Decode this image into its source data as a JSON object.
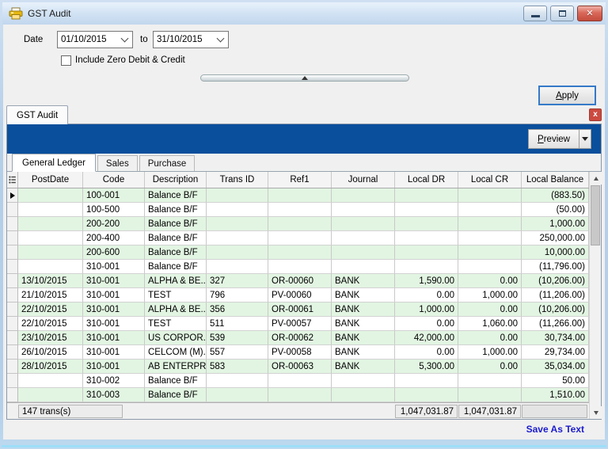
{
  "window": {
    "title": "GST Audit"
  },
  "icons": {
    "window": "printer",
    "close": "✕",
    "tab_close": "x",
    "current_row": "▶",
    "dropdown": "▼",
    "scroll_up": "▲",
    "scroll_down": "▼",
    "splitter_grip": "▲"
  },
  "colors": {
    "toolbar_blue": "#0a4f9c",
    "row_green": "#e2f5e2",
    "link_blue": "#1a1acd",
    "close_red": "#c34b3c",
    "titlebar_blue": "#cfe1f3"
  },
  "form": {
    "date_label": "Date",
    "date_from": "01/10/2015",
    "to_label": "to",
    "date_to": "31/10/2015",
    "checkbox_label": "Include Zero Debit & Credit",
    "checkbox_checked": false,
    "apply_label": "Apply"
  },
  "document_tab": {
    "label": "GST Audit"
  },
  "toolbar": {
    "preview_label": "Preview"
  },
  "tabs": {
    "general_ledger": "General Ledger",
    "sales": "Sales",
    "purchase": "Purchase",
    "active": "General Ledger"
  },
  "grid": {
    "columns": [
      "PostDate",
      "Code",
      "Description",
      "Trans ID",
      "Ref1",
      "Journal",
      "Local DR",
      "Local CR",
      "Local Balance"
    ],
    "rows": [
      {
        "current": true,
        "post_date": "",
        "code": "100-001",
        "description": "Balance B/F",
        "trans_id": "",
        "ref1": "",
        "journal": "",
        "local_dr": "",
        "local_cr": "",
        "local_balance": "(883.50)"
      },
      {
        "post_date": "",
        "code": "100-500",
        "description": "Balance B/F",
        "trans_id": "",
        "ref1": "",
        "journal": "",
        "local_dr": "",
        "local_cr": "",
        "local_balance": "(50.00)"
      },
      {
        "post_date": "",
        "code": "200-200",
        "description": "Balance B/F",
        "trans_id": "",
        "ref1": "",
        "journal": "",
        "local_dr": "",
        "local_cr": "",
        "local_balance": "1,000.00"
      },
      {
        "post_date": "",
        "code": "200-400",
        "description": "Balance B/F",
        "trans_id": "",
        "ref1": "",
        "journal": "",
        "local_dr": "",
        "local_cr": "",
        "local_balance": "250,000.00"
      },
      {
        "post_date": "",
        "code": "200-600",
        "description": "Balance B/F",
        "trans_id": "",
        "ref1": "",
        "journal": "",
        "local_dr": "",
        "local_cr": "",
        "local_balance": "10,000.00"
      },
      {
        "post_date": "",
        "code": "310-001",
        "description": "Balance B/F",
        "trans_id": "",
        "ref1": "",
        "journal": "",
        "local_dr": "",
        "local_cr": "",
        "local_balance": "(11,796.00)"
      },
      {
        "post_date": "13/10/2015",
        "code": "310-001",
        "description": "ALPHA & BE...",
        "trans_id": "327",
        "ref1": "OR-00060",
        "journal": "BANK",
        "local_dr": "1,590.00",
        "local_cr": "0.00",
        "local_balance": "(10,206.00)"
      },
      {
        "post_date": "21/10/2015",
        "code": "310-001",
        "description": "TEST",
        "trans_id": "796",
        "ref1": "PV-00060",
        "journal": "BANK",
        "local_dr": "0.00",
        "local_cr": "1,000.00",
        "local_balance": "(11,206.00)"
      },
      {
        "post_date": "22/10/2015",
        "code": "310-001",
        "description": "ALPHA & BE...",
        "trans_id": "356",
        "ref1": "OR-00061",
        "journal": "BANK",
        "local_dr": "1,000.00",
        "local_cr": "0.00",
        "local_balance": "(10,206.00)"
      },
      {
        "post_date": "22/10/2015",
        "code": "310-001",
        "description": "TEST",
        "trans_id": "511",
        "ref1": "PV-00057",
        "journal": "BANK",
        "local_dr": "0.00",
        "local_cr": "1,060.00",
        "local_balance": "(11,266.00)"
      },
      {
        "post_date": "23/10/2015",
        "code": "310-001",
        "description": "US CORPOR...",
        "trans_id": "539",
        "ref1": "OR-00062",
        "journal": "BANK",
        "local_dr": "42,000.00",
        "local_cr": "0.00",
        "local_balance": "30,734.00"
      },
      {
        "post_date": "26/10/2015",
        "code": "310-001",
        "description": "CELCOM (M)...",
        "trans_id": "557",
        "ref1": "PV-00058",
        "journal": "BANK",
        "local_dr": "0.00",
        "local_cr": "1,000.00",
        "local_balance": "29,734.00"
      },
      {
        "post_date": "28/10/2015",
        "code": "310-001",
        "description": "AB ENTERPR...",
        "trans_id": "583",
        "ref1": "OR-00063",
        "journal": "BANK",
        "local_dr": "5,300.00",
        "local_cr": "0.00",
        "local_balance": "35,034.00"
      },
      {
        "post_date": "",
        "code": "310-002",
        "description": "Balance B/F",
        "trans_id": "",
        "ref1": "",
        "journal": "",
        "local_dr": "",
        "local_cr": "",
        "local_balance": "50.00"
      },
      {
        "post_date": "",
        "code": "310-003",
        "description": "Balance B/F",
        "trans_id": "",
        "ref1": "",
        "journal": "",
        "local_dr": "",
        "local_cr": "",
        "local_balance": "1,510.00"
      }
    ],
    "footer": {
      "count": "147 trans(s)",
      "local_dr_total": "1,047,031.87",
      "local_cr_total": "1,047,031.87"
    }
  },
  "footer_link": "Save As Text"
}
